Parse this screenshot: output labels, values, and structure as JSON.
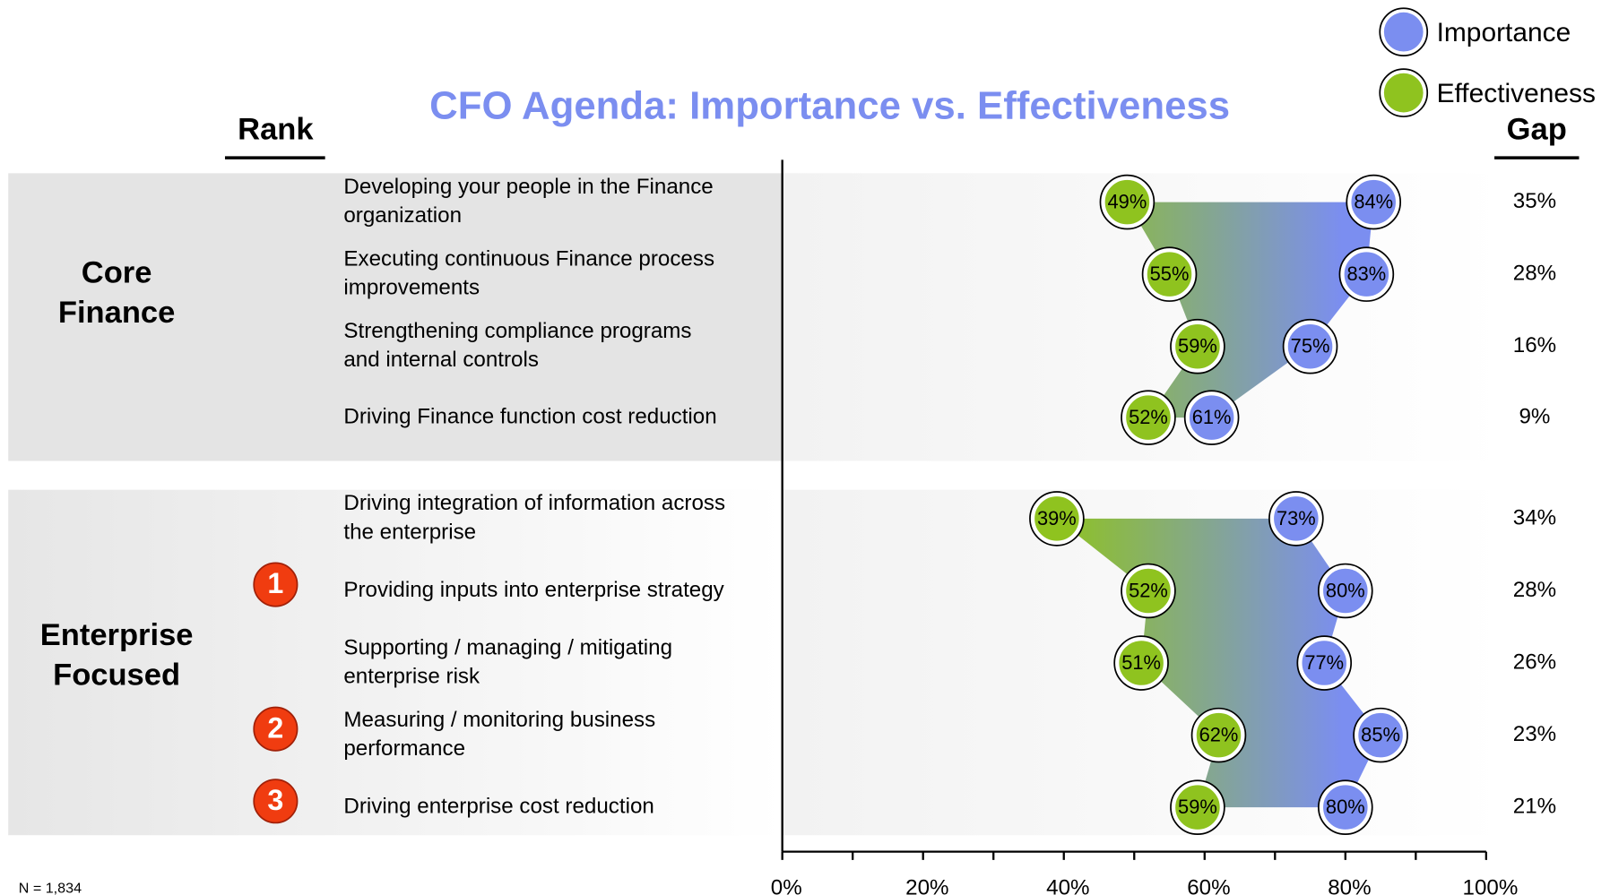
{
  "chart_data": {
    "type": "dumbbell",
    "title": "CFO Agenda: Importance vs. Effectiveness",
    "rank_header": "Rank",
    "gap_header": "Gap",
    "footnote": "N = 1,834",
    "groups": [
      {
        "name": [
          "Core",
          "Finance"
        ],
        "rows": [
          0,
          1,
          2,
          3
        ]
      },
      {
        "name": [
          "Enterprise",
          "Focused"
        ],
        "rows": [
          4,
          5,
          6,
          7,
          8
        ]
      }
    ],
    "categories": [
      [
        "Developing your people in the Finance",
        "organization"
      ],
      [
        "Executing continuous Finance process",
        "improvements"
      ],
      [
        "Strengthening compliance programs",
        "and internal controls"
      ],
      [
        "Driving Finance function cost reduction"
      ],
      [
        "Driving integration of information across",
        "the enterprise"
      ],
      [
        "Providing inputs into enterprise strategy"
      ],
      [
        "Supporting / managing / mitigating",
        "enterprise risk"
      ],
      [
        "Measuring / monitoring business",
        "performance"
      ],
      [
        "Driving enterprise cost reduction"
      ]
    ],
    "ranks": [
      null,
      null,
      null,
      null,
      null,
      "1",
      null,
      "2",
      "3"
    ],
    "series": [
      {
        "name": "Importance",
        "color": "#7b8ef0",
        "values": [
          84,
          83,
          75,
          61,
          73,
          80,
          77,
          85,
          80
        ],
        "value_labels": [
          "84%",
          "83%",
          "75%",
          "61%",
          "73%",
          "80%",
          "77%",
          "85%",
          "80%"
        ]
      },
      {
        "name": "Effectiveness",
        "color": "#8fc31f",
        "values": [
          49,
          55,
          59,
          52,
          39,
          52,
          51,
          62,
          59
        ],
        "value_labels": [
          "49%",
          "55%",
          "59%",
          "52%",
          "39%",
          "52%",
          "51%",
          "62%",
          "59%"
        ]
      }
    ],
    "gaps": [
      35,
      28,
      16,
      9,
      34,
      28,
      26,
      23,
      21
    ],
    "gap_labels": [
      "35%",
      "28%",
      "16%",
      "9%",
      "34%",
      "28%",
      "26%",
      "23%",
      "21%"
    ],
    "xlim": [
      0,
      100
    ],
    "xticks": [
      {
        "value": 0,
        "label": "0%"
      },
      {
        "value": 20,
        "label": "20%"
      },
      {
        "value": 40,
        "label": "40%"
      },
      {
        "value": 60,
        "label": "60%"
      },
      {
        "value": 80,
        "label": "80%"
      },
      {
        "value": 100,
        "label": "100%"
      }
    ]
  }
}
